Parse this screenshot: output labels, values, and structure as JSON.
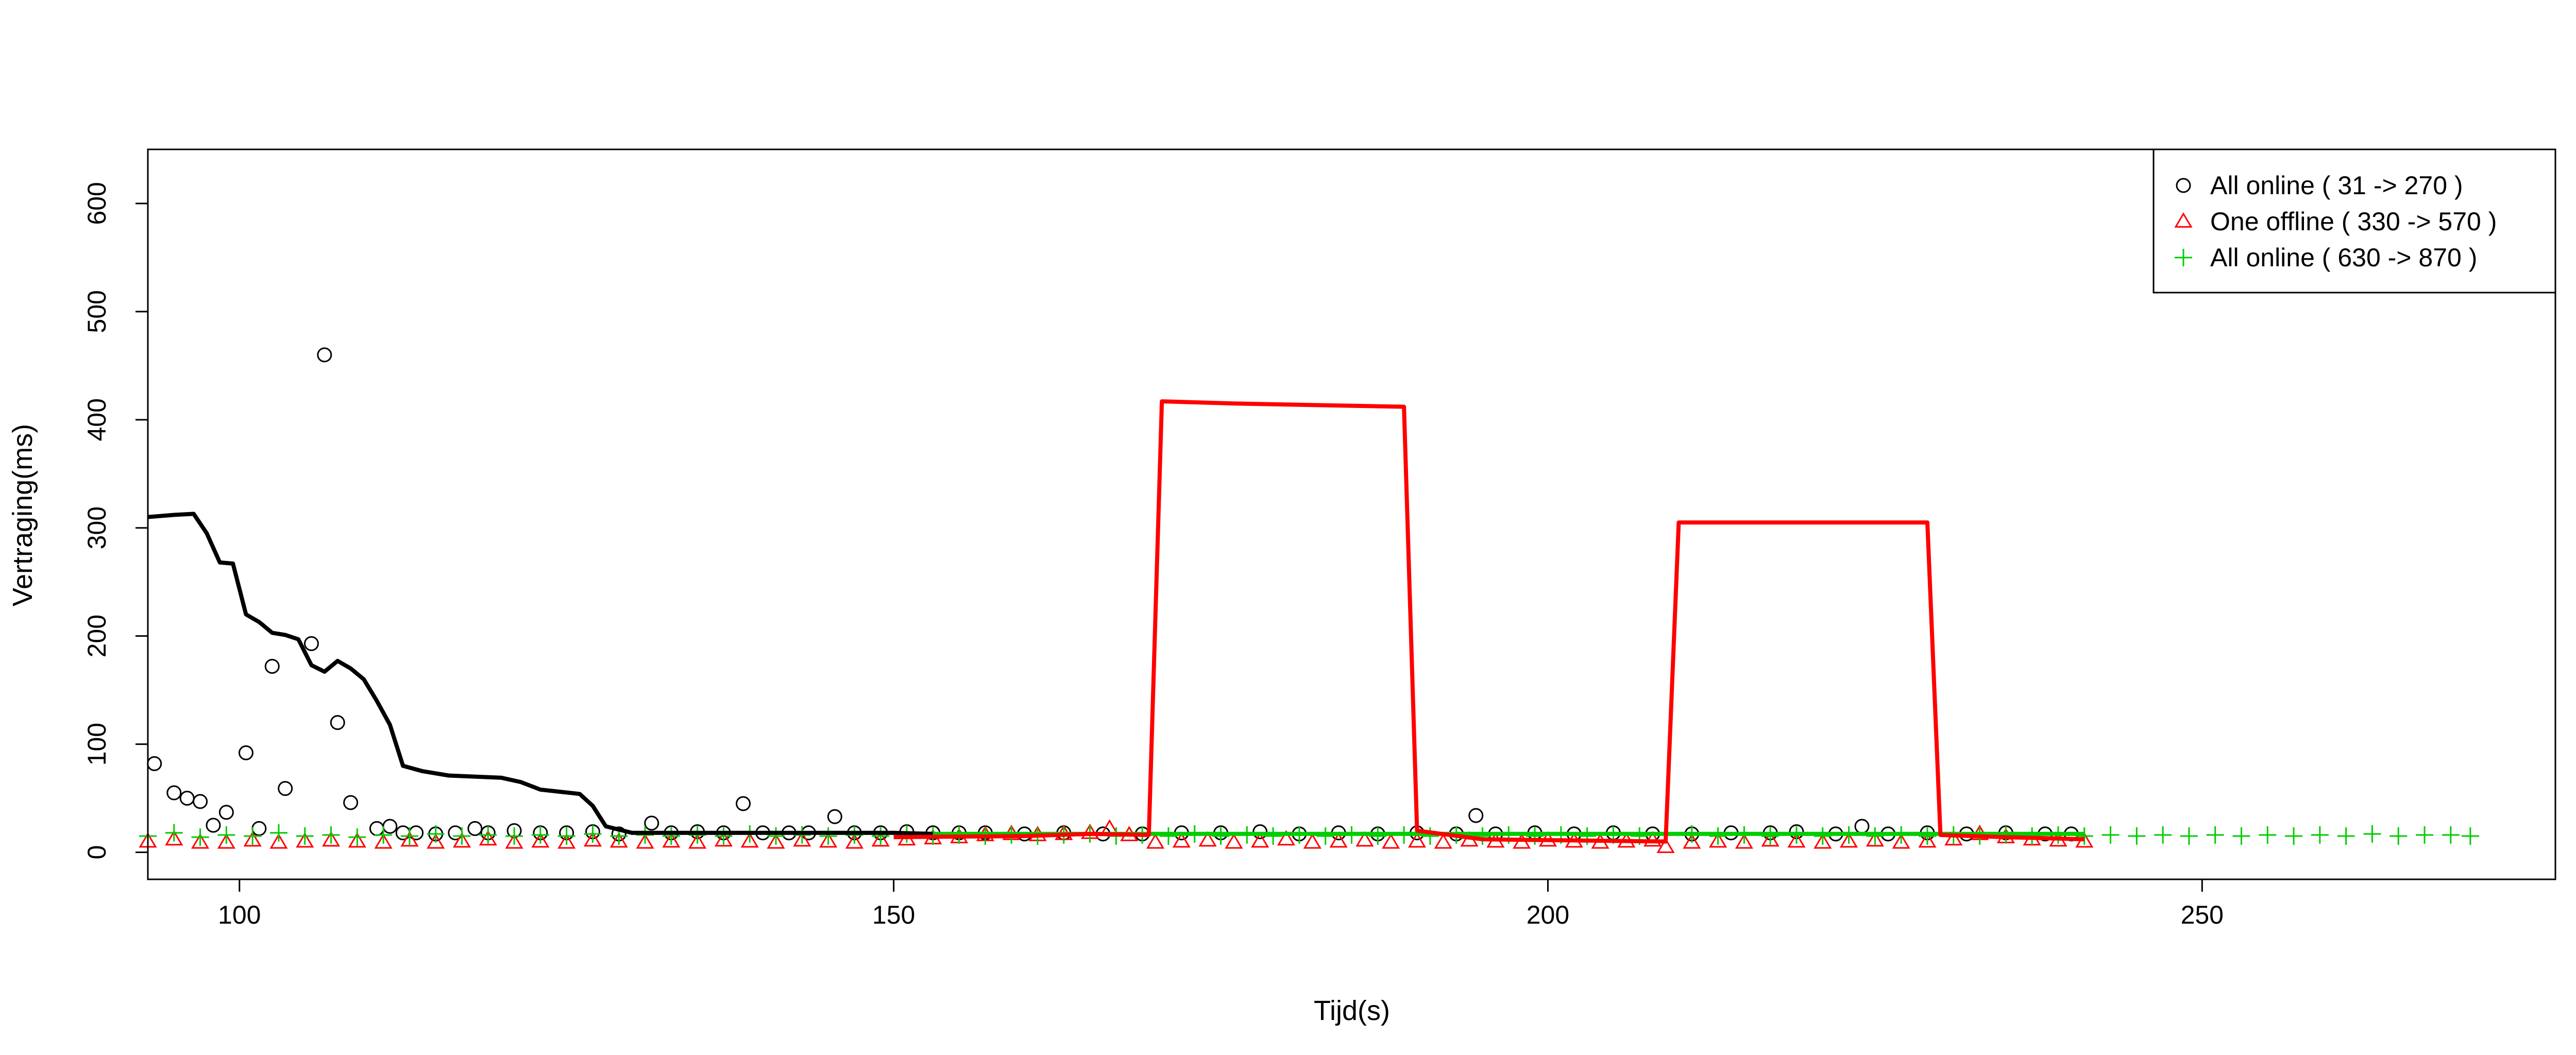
{
  "chart_data": {
    "type": "line",
    "xlabel": "Tijd(s)",
    "ylabel": "Vertraging(ms)",
    "xlim": [
      93,
      277
    ],
    "ylim": [
      -25,
      650
    ],
    "xticks": [
      100,
      150,
      200,
      250
    ],
    "yticks": [
      0,
      100,
      200,
      300,
      400,
      500,
      600
    ],
    "legend_position": "top-right",
    "legend": [
      {
        "label": "All online ( 31 -> 270 )",
        "symbol": "circle",
        "color": "#000000"
      },
      {
        "label": "One offline ( 330 -> 570 )",
        "symbol": "triangle",
        "color": "#ff0000"
      },
      {
        "label": "All online ( 630 -> 870 )",
        "symbol": "plus",
        "color": "#00cd00"
      }
    ],
    "series": [
      {
        "symbol": "circle",
        "color": "#000000",
        "points": [
          [
            93.5,
            82
          ],
          [
            95,
            55
          ],
          [
            96,
            50
          ],
          [
            97,
            47
          ],
          [
            98,
            25
          ],
          [
            99,
            37
          ],
          [
            100.5,
            92
          ],
          [
            101.5,
            22
          ],
          [
            102.5,
            172
          ],
          [
            103.5,
            59
          ],
          [
            105.5,
            193
          ],
          [
            106.5,
            460
          ],
          [
            107.5,
            120
          ],
          [
            108.5,
            46
          ],
          [
            110.5,
            22
          ],
          [
            111.5,
            24
          ],
          [
            112.5,
            18
          ],
          [
            113.5,
            18
          ],
          [
            115,
            17
          ],
          [
            116.5,
            18
          ],
          [
            118,
            22
          ],
          [
            119,
            18
          ],
          [
            121,
            20
          ],
          [
            123,
            18
          ],
          [
            125,
            18
          ],
          [
            127,
            19
          ],
          [
            129,
            17
          ],
          [
            131.5,
            27
          ],
          [
            133,
            18
          ],
          [
            135,
            19
          ],
          [
            137,
            18
          ],
          [
            138.5,
            45
          ],
          [
            140,
            18
          ],
          [
            142,
            18
          ],
          [
            143.5,
            18
          ],
          [
            145.5,
            33
          ],
          [
            147,
            18
          ],
          [
            149,
            18
          ],
          [
            151,
            19
          ],
          [
            153,
            18
          ],
          [
            155,
            18
          ],
          [
            157,
            18
          ],
          [
            160,
            17
          ],
          [
            163,
            18
          ],
          [
            166,
            17
          ],
          [
            169,
            17
          ],
          [
            172,
            18
          ],
          [
            175,
            18
          ],
          [
            178,
            19
          ],
          [
            181,
            17
          ],
          [
            184,
            18
          ],
          [
            187,
            17
          ],
          [
            190,
            18
          ],
          [
            193,
            17
          ],
          [
            194.5,
            34
          ],
          [
            196,
            17
          ],
          [
            199,
            18
          ],
          [
            202,
            17
          ],
          [
            205,
            18
          ],
          [
            208,
            17
          ],
          [
            211,
            17
          ],
          [
            214,
            18
          ],
          [
            217,
            18
          ],
          [
            219,
            19
          ],
          [
            222,
            17
          ],
          [
            224,
            24
          ],
          [
            226,
            17
          ],
          [
            229,
            18
          ],
          [
            232,
            17
          ],
          [
            235,
            18
          ],
          [
            238,
            17
          ],
          [
            240,
            17
          ]
        ]
      },
      {
        "symbol": "triangle",
        "color": "#ff0000",
        "points": [
          [
            93,
            10
          ],
          [
            95,
            12
          ],
          [
            97,
            9
          ],
          [
            99,
            9
          ],
          [
            101,
            11
          ],
          [
            103,
            9
          ],
          [
            105,
            10
          ],
          [
            107,
            11
          ],
          [
            109,
            10
          ],
          [
            111,
            9
          ],
          [
            113,
            11
          ],
          [
            115,
            9
          ],
          [
            117,
            10
          ],
          [
            119,
            12
          ],
          [
            121,
            9
          ],
          [
            123,
            10
          ],
          [
            125,
            9
          ],
          [
            127,
            11
          ],
          [
            129,
            10
          ],
          [
            131,
            9
          ],
          [
            133,
            10
          ],
          [
            135,
            9
          ],
          [
            137,
            11
          ],
          [
            139,
            10
          ],
          [
            141,
            9
          ],
          [
            143,
            11
          ],
          [
            145,
            10
          ],
          [
            147,
            9
          ],
          [
            149,
            11
          ],
          [
            151,
            12
          ],
          [
            153,
            13
          ],
          [
            155,
            14
          ],
          [
            157,
            16
          ],
          [
            159,
            17
          ],
          [
            161,
            16
          ],
          [
            163,
            17
          ],
          [
            165,
            18
          ],
          [
            166.5,
            22
          ],
          [
            168,
            16
          ],
          [
            170,
            9
          ],
          [
            172,
            10
          ],
          [
            174,
            11
          ],
          [
            176,
            9
          ],
          [
            178,
            10
          ],
          [
            180,
            12
          ],
          [
            182,
            9
          ],
          [
            184,
            10
          ],
          [
            186,
            11
          ],
          [
            188,
            9
          ],
          [
            190,
            10
          ],
          [
            192,
            9
          ],
          [
            194,
            11
          ],
          [
            196,
            10
          ],
          [
            198,
            9
          ],
          [
            200,
            11
          ],
          [
            202,
            10
          ],
          [
            204,
            9
          ],
          [
            206,
            10
          ],
          [
            208,
            11
          ],
          [
            209,
            5
          ],
          [
            211,
            9
          ],
          [
            213,
            10
          ],
          [
            215,
            9
          ],
          [
            217,
            11
          ],
          [
            219,
            10
          ],
          [
            221,
            9
          ],
          [
            223,
            10
          ],
          [
            225,
            11
          ],
          [
            227,
            9
          ],
          [
            229,
            10
          ],
          [
            231,
            12
          ],
          [
            233,
            17
          ],
          [
            235,
            14
          ],
          [
            237,
            12
          ],
          [
            239,
            11
          ],
          [
            241,
            10
          ]
        ]
      },
      {
        "symbol": "plus",
        "color": "#00cd00",
        "points": [
          [
            93,
            15
          ],
          [
            95,
            18
          ],
          [
            97,
            14
          ],
          [
            99,
            16
          ],
          [
            101,
            15
          ],
          [
            103,
            18
          ],
          [
            105,
            15
          ],
          [
            107,
            16
          ],
          [
            109,
            14
          ],
          [
            111,
            16
          ],
          [
            113,
            15
          ],
          [
            115,
            17
          ],
          [
            117,
            15
          ],
          [
            119,
            16
          ],
          [
            121,
            15
          ],
          [
            123,
            16
          ],
          [
            125,
            15
          ],
          [
            127,
            17
          ],
          [
            129,
            15
          ],
          [
            131,
            16
          ],
          [
            133,
            15
          ],
          [
            135,
            16
          ],
          [
            137,
            15
          ],
          [
            139,
            17
          ],
          [
            141,
            15
          ],
          [
            143,
            16
          ],
          [
            145,
            15
          ],
          [
            147,
            16
          ],
          [
            149,
            15
          ],
          [
            151,
            17
          ],
          [
            153,
            15
          ],
          [
            155,
            16
          ],
          [
            157,
            15
          ],
          [
            159,
            16
          ],
          [
            161,
            15
          ],
          [
            163,
            16
          ],
          [
            165,
            17
          ],
          [
            167,
            15
          ],
          [
            169,
            16
          ],
          [
            171,
            15
          ],
          [
            173,
            17
          ],
          [
            175,
            15
          ],
          [
            177,
            16
          ],
          [
            179,
            15
          ],
          [
            181,
            16
          ],
          [
            183,
            15
          ],
          [
            185,
            16
          ],
          [
            187,
            15
          ],
          [
            189,
            16
          ],
          [
            191,
            15
          ],
          [
            193,
            16
          ],
          [
            195,
            15
          ],
          [
            197,
            16
          ],
          [
            199,
            15
          ],
          [
            201,
            16
          ],
          [
            203,
            15
          ],
          [
            205,
            16
          ],
          [
            207,
            15
          ],
          [
            209,
            16
          ],
          [
            211,
            17
          ],
          [
            213,
            15
          ],
          [
            215,
            16
          ],
          [
            217,
            15
          ],
          [
            219,
            16
          ],
          [
            221,
            15
          ],
          [
            223,
            16
          ],
          [
            225,
            15
          ],
          [
            227,
            16
          ],
          [
            229,
            15
          ],
          [
            231,
            16
          ],
          [
            233,
            15
          ],
          [
            235,
            16
          ],
          [
            237,
            15
          ],
          [
            239,
            16
          ],
          [
            241,
            15
          ],
          [
            243,
            16
          ],
          [
            245,
            15
          ],
          [
            247,
            16
          ],
          [
            249,
            15
          ],
          [
            251,
            16
          ],
          [
            253,
            15
          ],
          [
            255,
            16
          ],
          [
            257,
            15
          ],
          [
            259,
            16
          ],
          [
            261,
            15
          ],
          [
            263,
            17
          ],
          [
            265,
            15
          ],
          [
            267,
            16
          ],
          [
            269,
            16
          ],
          [
            270.5,
            15
          ]
        ]
      },
      {
        "style": "line",
        "color": "#000000",
        "points": [
          [
            93,
            310
          ],
          [
            95,
            312
          ],
          [
            96.5,
            313
          ],
          [
            97.5,
            295
          ],
          [
            98.5,
            268
          ],
          [
            99.5,
            267
          ],
          [
            100.5,
            220
          ],
          [
            101.5,
            213
          ],
          [
            102.5,
            203
          ],
          [
            103.5,
            201
          ],
          [
            104.5,
            197
          ],
          [
            105.5,
            173
          ],
          [
            106.5,
            167
          ],
          [
            107.5,
            177
          ],
          [
            108.5,
            170
          ],
          [
            109.5,
            160
          ],
          [
            110.5,
            140
          ],
          [
            111.5,
            118
          ],
          [
            112.5,
            80
          ],
          [
            114,
            75
          ],
          [
            116,
            71
          ],
          [
            118,
            70
          ],
          [
            120,
            69
          ],
          [
            121.5,
            65
          ],
          [
            123,
            58
          ],
          [
            124.5,
            56
          ],
          [
            126,
            54
          ],
          [
            127,
            43
          ],
          [
            128,
            24
          ],
          [
            130,
            18
          ],
          [
            140,
            18
          ],
          [
            150,
            18
          ],
          [
            153,
            17
          ]
        ]
      },
      {
        "style": "line",
        "color": "#00cd00",
        "points": [
          [
            153,
            17
          ],
          [
            170,
            17
          ],
          [
            190,
            17
          ],
          [
            210,
            17
          ],
          [
            230,
            17
          ],
          [
            241,
            17
          ]
        ]
      },
      {
        "style": "line",
        "color": "#ff0000",
        "points": [
          [
            150,
            14
          ],
          [
            160,
            15
          ],
          [
            165,
            17
          ],
          [
            169.5,
            16
          ],
          [
            170.5,
            417
          ],
          [
            176,
            415
          ],
          [
            189,
            412
          ],
          [
            190,
            20
          ],
          [
            195,
            12
          ],
          [
            209,
            10
          ],
          [
            210,
            305
          ],
          [
            216,
            305
          ],
          [
            229,
            305
          ],
          [
            230,
            16
          ],
          [
            235,
            14
          ],
          [
            241,
            12
          ]
        ]
      }
    ]
  }
}
